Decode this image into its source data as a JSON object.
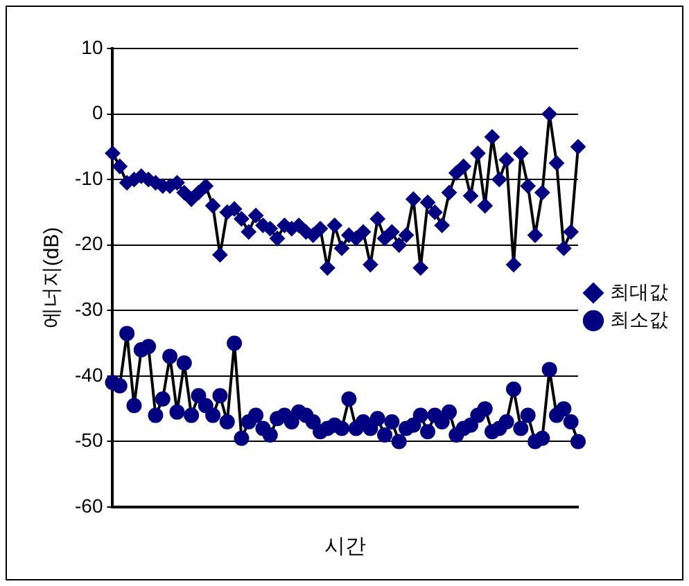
{
  "chart_data": {
    "type": "line",
    "xlabel": "시간",
    "ylabel": "에너지(dB)",
    "categories": [
      null,
      null,
      null,
      null,
      null,
      null,
      null,
      null,
      null,
      null,
      null,
      null,
      null,
      null,
      null,
      null,
      null,
      null,
      null,
      null,
      null,
      null,
      null,
      null,
      null,
      null,
      null,
      null,
      null,
      null,
      null,
      null,
      null,
      null,
      null,
      null,
      null,
      null,
      null,
      null,
      null,
      null,
      null,
      null,
      null,
      null,
      null,
      null,
      null,
      null,
      null,
      null,
      null,
      null,
      null,
      null,
      null,
      null,
      null,
      null,
      null,
      null,
      null,
      null,
      null,
      null
    ],
    "series": [
      {
        "name": "최대값",
        "color": "#000080",
        "marker": "diamond",
        "values": [
          -6,
          -8,
          -10.5,
          -10,
          -9.5,
          -10,
          -10.5,
          -11,
          -11,
          -10.5,
          -12,
          -13,
          -12,
          -11,
          -14,
          -21.5,
          -15,
          -14.5,
          -16,
          -18,
          -15.5,
          -17,
          -17.5,
          -19,
          -17,
          -17.5,
          -17,
          -18,
          -18.5,
          -17.5,
          -23.5,
          -17,
          -20.5,
          -18.5,
          -19,
          -18,
          -23,
          -16,
          -19,
          -18,
          -20,
          -18.5,
          -13,
          -23.5,
          -13.5,
          -15,
          -17,
          -12,
          -9,
          -8,
          -12.5,
          -6,
          -14,
          -3.5,
          -10,
          -7,
          -23,
          -6,
          -11,
          -18.5,
          -12,
          0,
          -7.5,
          -20.5,
          -18,
          -5
        ]
      },
      {
        "name": "최소값",
        "color": "#000080",
        "marker": "circle",
        "values": [
          -41,
          -41.5,
          -33.5,
          -44.5,
          -36,
          -35.5,
          -46,
          -43.5,
          -37,
          -45.5,
          -38,
          -46,
          -43,
          -44.5,
          -46,
          -43,
          -47,
          -35,
          -49.5,
          -47,
          -46,
          -48,
          -49,
          -46.5,
          -46,
          -47,
          -45.5,
          -46,
          -47,
          -48.5,
          -48,
          -47.5,
          -48,
          -43.5,
          -48,
          -47,
          -48,
          -46.5,
          -49,
          -47,
          -50,
          -48,
          -47.5,
          -46,
          -48.5,
          -46,
          -47,
          -45.5,
          -49,
          -48,
          -47.5,
          -46,
          -45,
          -48.5,
          -48,
          -47,
          -42,
          -48,
          -46,
          -50,
          -49.5,
          -39,
          -46,
          -45,
          -47,
          -50
        ]
      }
    ],
    "ylim": [
      -60,
      10
    ],
    "yticks": [
      -60,
      -50,
      -40,
      -30,
      -20,
      -10,
      0,
      10
    ],
    "grid": "y",
    "legend": "right",
    "tick_labels": "y"
  }
}
